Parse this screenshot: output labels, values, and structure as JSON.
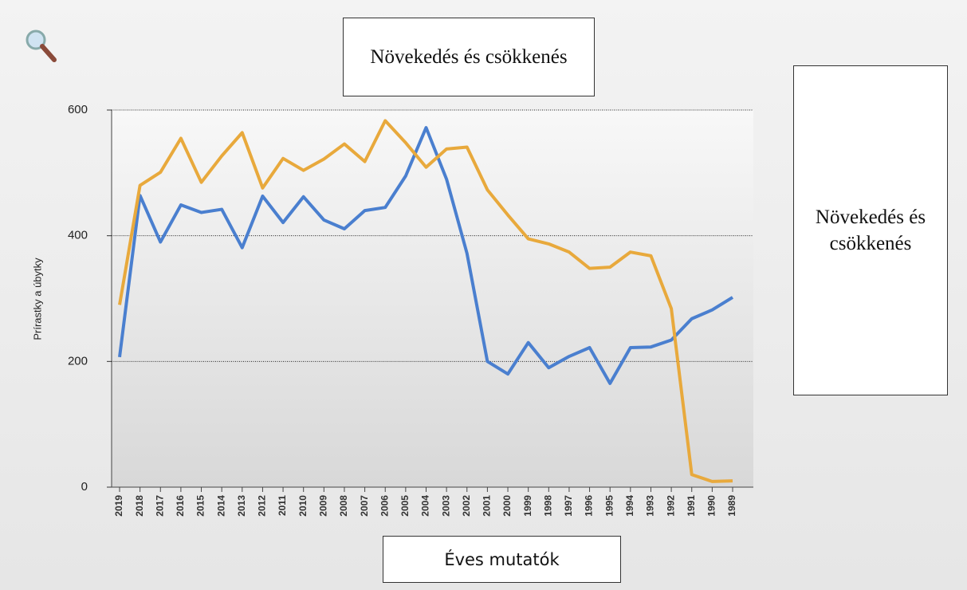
{
  "chart_data": {
    "type": "line",
    "title": "Növekedés és csökkenés",
    "legend_text": "Növekedés és csökkenés",
    "x_label": "Éves mutatók",
    "y_label": "Prírastky a úbytky",
    "categories": [
      "2019",
      "2018",
      "2017",
      "2016",
      "2015",
      "2014",
      "2013",
      "2012",
      "2011",
      "2010",
      "2009",
      "2008",
      "2007",
      "2006",
      "2005",
      "2004",
      "2003",
      "2002",
      "2001",
      "2000",
      "1999",
      "1998",
      "1997",
      "1996",
      "1995",
      "1994",
      "1993",
      "1992",
      "1991",
      "1990",
      "1989"
    ],
    "series": [
      {
        "color": "#4a7fcf",
        "values": [
          207,
          464,
          390,
          449,
          437,
          442,
          381,
          463,
          421,
          462,
          425,
          411,
          440,
          445,
          495,
          572,
          490,
          372,
          200,
          180,
          230,
          190,
          208,
          222,
          165,
          222,
          223,
          234,
          268,
          282,
          302
        ]
      },
      {
        "color": "#e8a93c",
        "values": [
          290,
          480,
          501,
          555,
          485,
          527,
          564,
          476,
          523,
          504,
          522,
          546,
          518,
          583,
          548,
          509,
          538,
          541,
          473,
          433,
          395,
          387,
          374,
          348,
          350,
          374,
          368,
          284,
          20,
          9,
          10
        ]
      }
    ],
    "ylim": [
      0,
      600
    ],
    "yticks": [
      0,
      200,
      400,
      600
    ],
    "grid": true
  }
}
